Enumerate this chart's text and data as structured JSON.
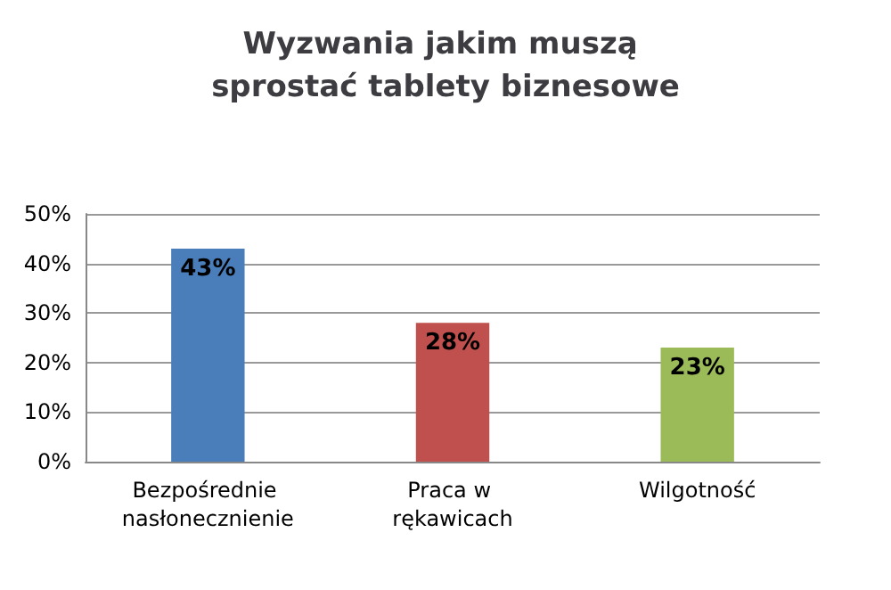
{
  "chart_data": {
    "type": "bar",
    "title": "Wyzwania jakim muszą sprostać tablety biznesowe",
    "categories": [
      "Bezpośrednie nasłonecznienie",
      "Praca w rękawicach",
      "Wilgotność"
    ],
    "values": [
      43,
      28,
      23
    ],
    "colors": [
      "#4a7ebb",
      "#c0504d",
      "#9bbb59"
    ],
    "value_labels": [
      "43%",
      "28%",
      "23%"
    ],
    "ylim": [
      0,
      50
    ],
    "yticks": [
      {
        "value": 0,
        "label": "0%"
      },
      {
        "value": 10,
        "label": "10%"
      },
      {
        "value": 20,
        "label": "20%"
      },
      {
        "value": 30,
        "label": "30%"
      },
      {
        "value": 40,
        "label": "40%"
      },
      {
        "value": 50,
        "label": "50%"
      }
    ],
    "grid": "y"
  }
}
